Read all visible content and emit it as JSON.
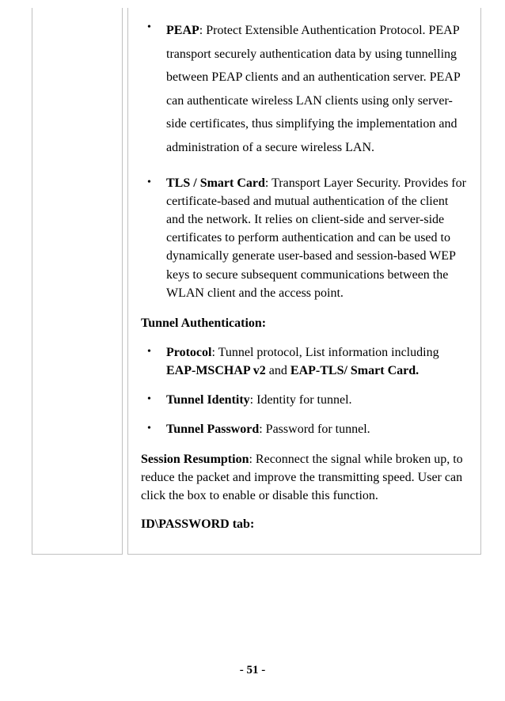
{
  "bullets": {
    "peap": {
      "label": "PEAP",
      "text": ": Protect Extensible Authentication Protocol. PEAP transport securely authentication data by using tunnelling between PEAP clients and an authentication server. PEAP can authenticate wireless LAN clients using only server-side certificates, thus simplifying the implementation and administration of a secure wireless LAN."
    },
    "tls": {
      "label": "TLS / Smart Card",
      "text": ": Transport Layer Security. Provides for certificate-based and mutual authentication of the client and the network. It relies on client-side and server-side certificates to perform authentication and can be used to dynamically generate user-based and session-based WEP keys to secure subsequent communications between the WLAN client and the access point."
    },
    "protocol": {
      "label": "Protocol",
      "text_pre": ": Tunnel protocol, List information including ",
      "bold1": "EAP-MSCHAP v2",
      "mid": " and ",
      "bold2": "EAP-TLS/ Smart Card."
    },
    "tunnel_identity": {
      "label": "Tunnel Identity",
      "text": ": Identity for tunnel."
    },
    "tunnel_password": {
      "label": "Tunnel Password",
      "text": ": Password for tunnel."
    }
  },
  "headings": {
    "tunnel_auth": "Tunnel Authentication",
    "id_password_tab": "ID\\PASSWORD tab:"
  },
  "session_resumption": {
    "label": "Session Resumption",
    "text": ": Reconnect the signal while broken up, to reduce the packet and improve the transmitting speed. User can click the box to enable or disable this function."
  },
  "colon": ":",
  "bullet_glyph": "•",
  "page_number": "- 51 -"
}
